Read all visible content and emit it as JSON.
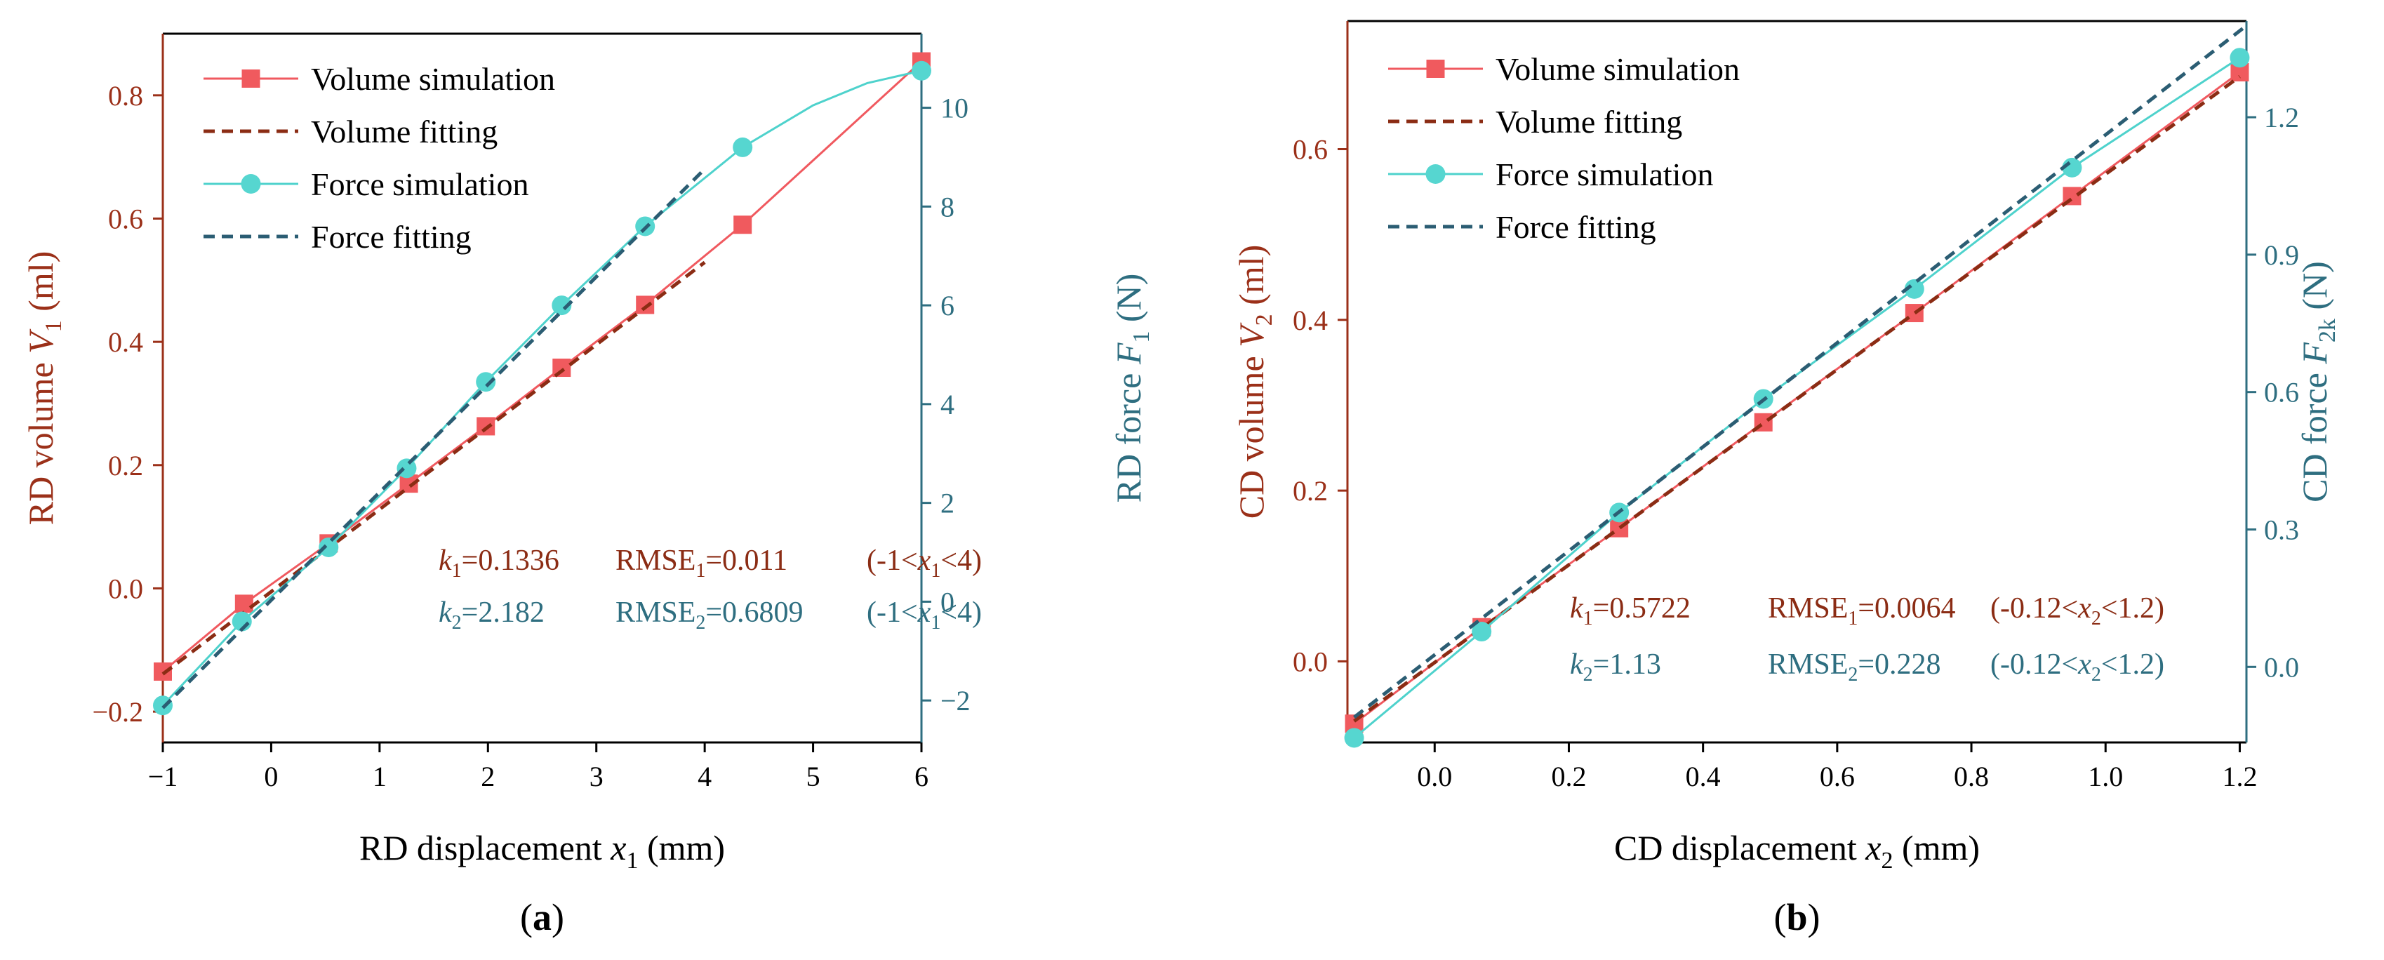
{
  "colors": {
    "volume": "#f0595f",
    "volume_marker": "#f05a5e",
    "volume_fit": "#8b2c14",
    "force": "#4ed2cc",
    "force_marker": "#56d6d0",
    "force_fit": "#2b5d73",
    "left_axis": "#9b3019",
    "right_axis": "#2e6e80",
    "axis": "#000000"
  },
  "chart_data": [
    {
      "panel_label": "(a)",
      "type": "line",
      "x": {
        "label": "RD displacement",
        "var": "x",
        "sub": "1",
        "unit": "(mm)",
        "range": [
          -1,
          6
        ],
        "ticks": [
          -1,
          0,
          1,
          2,
          3,
          4,
          5,
          6
        ],
        "tick_labels": [
          "−1",
          "0",
          "1",
          "2",
          "3",
          "4",
          "5",
          "6"
        ]
      },
      "y_left": {
        "label": "RD volume",
        "var": "V",
        "sub": "1",
        "unit": "(ml)",
        "range": [
          -0.25,
          0.9
        ],
        "ticks": [
          -0.2,
          0,
          0.2,
          0.4,
          0.6,
          0.8
        ],
        "tick_labels": [
          "−0.2",
          "0.0",
          "0.2",
          "0.4",
          "0.6",
          "0.8"
        ]
      },
      "y_right": {
        "label": "RD force",
        "var": "F",
        "sub": "1",
        "unit": "(N)",
        "range": [
          -2.85,
          11.5
        ],
        "ticks": [
          -2,
          0,
          2,
          4,
          6,
          8,
          10
        ],
        "tick_labels": [
          "−2",
          "0",
          "2",
          "4",
          "6",
          "8",
          "10"
        ]
      },
      "series": [
        {
          "name": "Volume simulation",
          "axis": "left",
          "style": "sim",
          "marker": "square",
          "color_key": "volume",
          "marker_color_key": "volume_marker",
          "x": [
            -1,
            -0.25,
            0.53,
            1.27,
            1.98,
            2.68,
            3.45,
            4.35,
            6.0
          ],
          "y": [
            -0.135,
            -0.025,
            0.073,
            0.17,
            0.263,
            0.358,
            0.46,
            0.59,
            0.855
          ]
        },
        {
          "name": "Volume fitting",
          "axis": "left",
          "style": "fit",
          "color_key": "volume_fit",
          "x": [
            -1,
            4
          ],
          "y": [
            -0.139,
            0.529
          ]
        },
        {
          "name": "Force simulation",
          "axis": "right",
          "style": "sim",
          "marker": "circle",
          "color_key": "force",
          "marker_color_key": "force_marker",
          "x": [
            -1,
            -0.27,
            0.53,
            1.25,
            1.98,
            2.68,
            3.45,
            4.35,
            6.0
          ],
          "y": [
            -2.1,
            -0.4,
            1.1,
            2.7,
            4.45,
            6.0,
            7.6,
            9.2,
            10.75
          ],
          "curve": [
            [
              4.35,
              9.2
            ],
            [
              5.0,
              10.05
            ],
            [
              5.5,
              10.5
            ],
            [
              6.0,
              10.75
            ]
          ]
        },
        {
          "name": "Force fitting",
          "axis": "right",
          "style": "fit",
          "color_key": "force_fit",
          "x": [
            -1,
            4
          ],
          "y": [
            -2.15,
            8.76
          ]
        }
      ],
      "legend_location": "top-left",
      "annotations": [
        {
          "color_key": "volume_fit",
          "k": "k",
          "k_sub": "1",
          "k_val": "=0.1336",
          "rmse": "RMSE",
          "rmse_sub": "1",
          "rmse_val": "=0.011",
          "range_open": "(-1<",
          "range_var": "x",
          "range_sub": "1",
          "range_close": "<4)"
        },
        {
          "color_key": "right_axis",
          "k": "k",
          "k_sub": "2",
          "k_val": "=2.182",
          "rmse": "RMSE",
          "rmse_sub": "2",
          "rmse_val": "=0.6809",
          "range_open": "(-1<",
          "range_var": "x",
          "range_sub": "1",
          "range_close": "<4)"
        }
      ]
    },
    {
      "panel_label": "(b)",
      "type": "line",
      "x": {
        "label": "CD displacement",
        "var": "x",
        "sub": "2",
        "unit": "(mm)",
        "range": [
          -0.13,
          1.21
        ],
        "ticks": [
          0,
          0.2,
          0.4,
          0.6,
          0.8,
          1.0,
          1.2
        ],
        "tick_labels": [
          "0.0",
          "0.2",
          "0.4",
          "0.6",
          "0.8",
          "1.0",
          "1.2"
        ]
      },
      "y_left": {
        "label": "CD volume",
        "var": "V",
        "sub": "2",
        "unit": "(ml)",
        "range": [
          -0.095,
          0.75
        ],
        "ticks": [
          0,
          0.2,
          0.4,
          0.6
        ],
        "tick_labels": [
          "0.0",
          "0.2",
          "0.4",
          "0.6"
        ]
      },
      "y_right": {
        "label": "CD force",
        "var": "F",
        "sub": "2k",
        "unit": "(N)",
        "range": [
          -0.165,
          1.41
        ],
        "ticks": [
          0,
          0.3,
          0.6,
          0.9,
          1.2
        ],
        "tick_labels": [
          "0.0",
          "0.3",
          "0.6",
          "0.9",
          "1.2"
        ]
      },
      "series": [
        {
          "name": "Volume simulation",
          "axis": "left",
          "style": "sim",
          "marker": "square",
          "color_key": "volume",
          "marker_color_key": "volume_marker",
          "x": [
            -0.12,
            0.07,
            0.275,
            0.49,
            0.715,
            0.95,
            1.2
          ],
          "y": [
            -0.073,
            0.04,
            0.156,
            0.28,
            0.408,
            0.545,
            0.69
          ]
        },
        {
          "name": "Volume fitting",
          "axis": "left",
          "style": "fit",
          "color_key": "volume_fit",
          "x": [
            -0.12,
            1.2
          ],
          "y": [
            -0.07,
            0.685
          ]
        },
        {
          "name": "Force simulation",
          "axis": "right",
          "style": "sim",
          "marker": "circle",
          "color_key": "force",
          "marker_color_key": "force_marker",
          "x": [
            -0.12,
            0.07,
            0.275,
            0.49,
            0.715,
            0.95,
            1.2
          ],
          "y": [
            -0.155,
            0.077,
            0.337,
            0.585,
            0.825,
            1.09,
            1.33
          ]
        },
        {
          "name": "Force fitting",
          "axis": "right",
          "style": "fit",
          "color_key": "force_fit",
          "x": [
            -0.12,
            1.21
          ],
          "y": [
            -0.11,
            1.4
          ]
        }
      ],
      "legend_location": "top-left",
      "annotations": [
        {
          "color_key": "volume_fit",
          "k": "k",
          "k_sub": "1",
          "k_val": "=0.5722",
          "rmse": "RMSE",
          "rmse_sub": "1",
          "rmse_val": "=0.0064",
          "range_open": "(-0.12<",
          "range_var": "x",
          "range_sub": "2",
          "range_close": "<1.2)"
        },
        {
          "color_key": "right_axis",
          "k": "k",
          "k_sub": "2",
          "k_val": "=1.13",
          "rmse": "RMSE",
          "rmse_sub": "2",
          "rmse_val": "=0.228",
          "range_open": "(-0.12<",
          "range_var": "x",
          "range_sub": "2",
          "range_close": "<1.2)"
        }
      ]
    }
  ]
}
